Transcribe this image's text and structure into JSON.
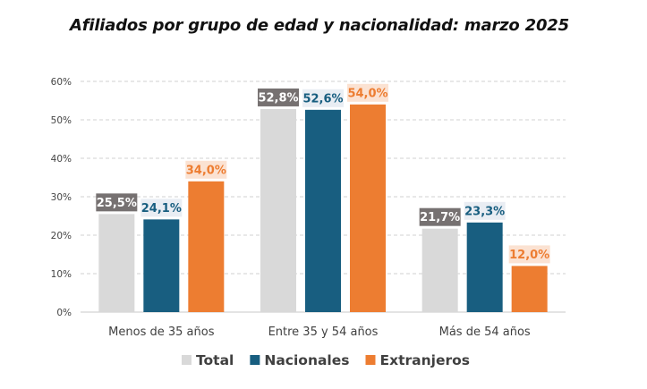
{
  "chart_data": {
    "type": "bar",
    "title": "Afiliados por grupo de edad y nacionalidad: marzo 2025",
    "categories": [
      "Menos de 35 años",
      "Entre 35 y 54 años",
      "Más de 54 años"
    ],
    "series": [
      {
        "name": "Total",
        "values": [
          25.5,
          52.8,
          21.7
        ],
        "labels": [
          "25,5%",
          "52,8%",
          "21,7%"
        ],
        "color": "#d9d9d9",
        "label_bg": "#767171",
        "label_color": "#ffffff"
      },
      {
        "name": "Nacionales",
        "values": [
          24.1,
          52.6,
          23.3
        ],
        "labels": [
          "24,1%",
          "52,6%",
          "23,3%"
        ],
        "color": "#185e80",
        "label_bg": "#e9edf3",
        "label_color": "#185e80"
      },
      {
        "name": "Extranjeros",
        "values": [
          34.0,
          54.0,
          12.0
        ],
        "labels": [
          "34,0%",
          "54,0%",
          "12,0%"
        ],
        "color": "#ed7d31",
        "label_bg": "#fbe2d2",
        "label_color": "#ed7d31"
      }
    ],
    "yticks": [
      "0%",
      "10%",
      "20%",
      "30%",
      "40%",
      "50%",
      "60%"
    ],
    "ylim": [
      0,
      60
    ],
    "xlabel": "",
    "ylabel": "",
    "grid": true,
    "legend": "bottom"
  }
}
